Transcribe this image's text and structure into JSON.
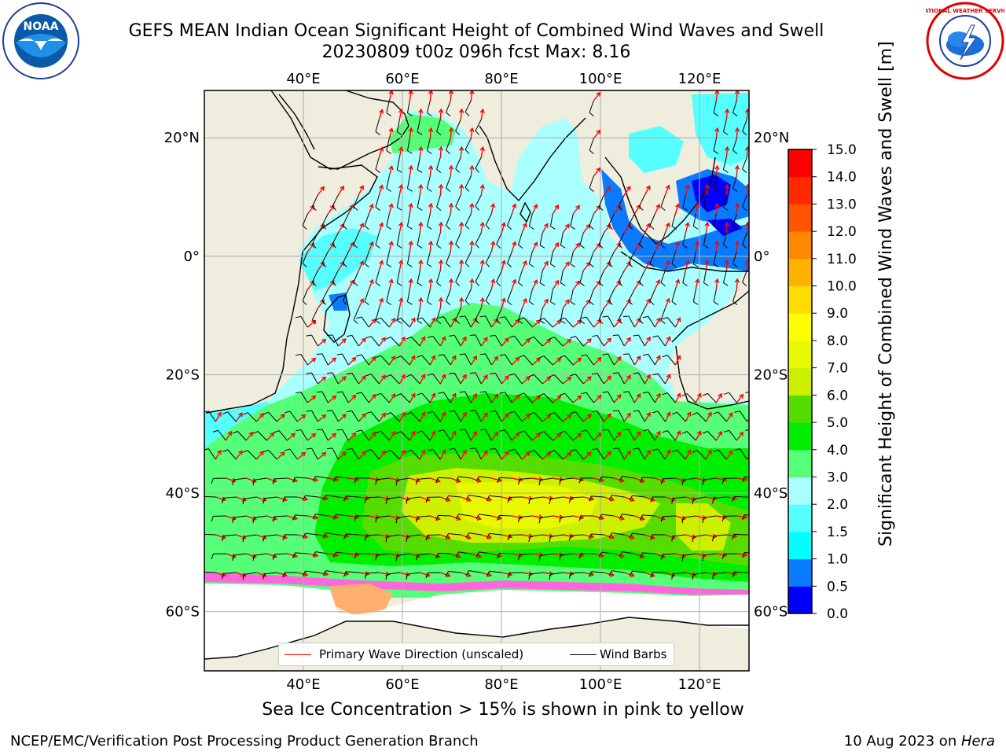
{
  "header": {
    "title_line1": "GEFS MEAN Indian Ocean Significant Height of Combined Wind Waves and Swell",
    "title_line2": "20230809 t00z 096h fcst   Max: 8.16"
  },
  "logos": {
    "left": "noaa-logo",
    "left_text": "NOAA",
    "right": "nws-logo",
    "right_text": "NATIONAL WEATHER SERVICE"
  },
  "map": {
    "projection": "PlateCarree",
    "lon_range": [
      20,
      130
    ],
    "lat_range": [
      -70,
      28
    ],
    "lon_ticks": [
      "40°E",
      "60°E",
      "80°E",
      "100°E",
      "120°E"
    ],
    "lat_ticks": [
      "20°N",
      "0°",
      "20°S",
      "40°S",
      "60°S"
    ],
    "grid": true,
    "colors": {
      "land": "#efedde",
      "ice_free_ocean": "#ffffff",
      "wave_arrows": "#ff0000",
      "wind_barbs": "#000000"
    }
  },
  "legend": {
    "wave_label": "Primary Wave Direction (unscaled)",
    "barb_label": "Wind Barbs",
    "placement": "bottom-center"
  },
  "colorbar": {
    "label": "Significant Height of Combined Wind Waves and Swell [m]",
    "ticks": [
      "0.0",
      "0.5",
      "1.0",
      "1.5",
      "2.0",
      "3.0",
      "4.0",
      "5.0",
      "6.0",
      "7.0",
      "8.0",
      "9.0",
      "10.0",
      "11.0",
      "12.0",
      "13.0",
      "14.0",
      "15.0"
    ],
    "colors": [
      "#0000ff",
      "#0a7bff",
      "#00ffff",
      "#55ffff",
      "#aaffff",
      "#55ff77",
      "#00ee00",
      "#55dd00",
      "#ccf000",
      "#e8f800",
      "#ffff00",
      "#ffdd00",
      "#ffb300",
      "#ff8800",
      "#ff5500",
      "#ff2a00",
      "#ff0000"
    ]
  },
  "note": "Sea Ice Concentration > 15% is shown in pink to yellow",
  "footer": {
    "left": "NCEP/EMC/Verification Post Processing Product Generation Branch",
    "right_date": "10 Aug 2023 on ",
    "right_system": "Hera"
  }
}
